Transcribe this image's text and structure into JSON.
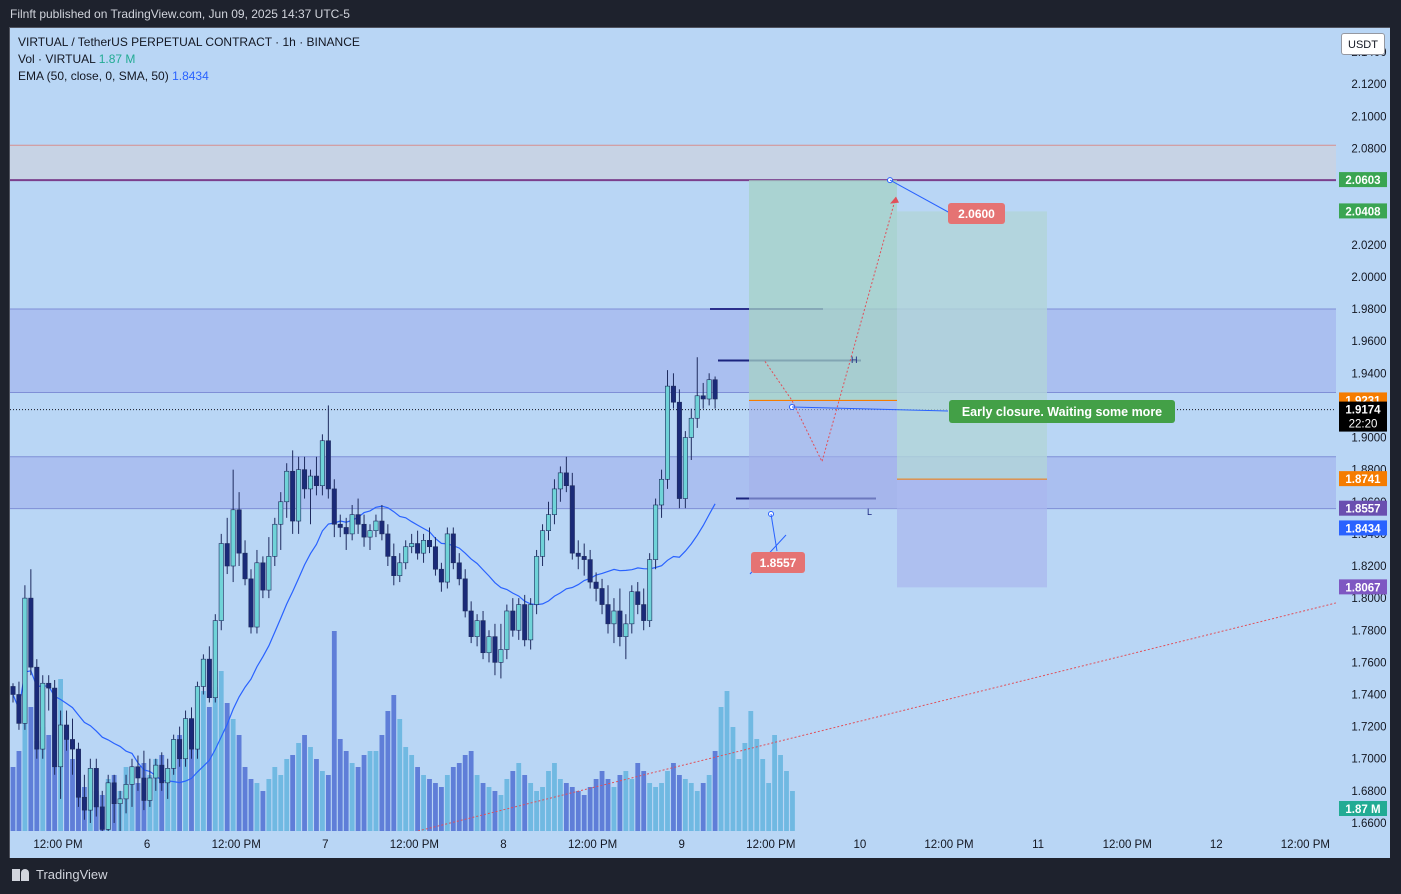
{
  "header": {
    "published": "Filnft published on TradingView.com, Jun 09, 2025 14:37 UTC-5"
  },
  "legend": {
    "symbol": "VIRTUAL / TetherUS PERPETUAL CONTRACT · 1h · BINANCE",
    "vol_label": "Vol · VIRTUAL",
    "vol_value": "1.87 M",
    "ema_label": "EMA (50, close, 0, SMA, 50)",
    "ema_value": "1.8434"
  },
  "currency_button": "USDT",
  "footer": {
    "brand": "TradingView"
  },
  "colors": {
    "background": "#b9d6f5",
    "up_body": "#6fd3d8",
    "down_body": "#1a2a78",
    "wick": "#1e2b5e",
    "ema": "#2962ff",
    "volume": "#5a79d6",
    "resistance_line": "#7b3f8c",
    "path": "#e0505a"
  },
  "chart_data": {
    "type": "candlestick",
    "y_axis": {
      "ylim": [
        1.655,
        2.155
      ],
      "ticks": [
        "2.1400",
        "2.1200",
        "2.1000",
        "2.0800",
        "2.0600",
        "2.0400",
        "2.0200",
        "2.0000",
        "1.9800",
        "1.9600",
        "1.9400",
        "1.9200",
        "1.9000",
        "1.8800",
        "1.8600",
        "1.8400",
        "1.8200",
        "1.8000",
        "1.7800",
        "1.7600",
        "1.7400",
        "1.7200",
        "1.7000",
        "1.6800",
        "1.6600"
      ]
    },
    "x_axis": {
      "ticks": [
        "12:00 PM",
        "6",
        "12:00 PM",
        "7",
        "12:00 PM",
        "8",
        "12:00 PM",
        "9",
        "12:00 PM",
        "10",
        "12:00 PM",
        "11",
        "12:00 PM",
        "12",
        "12:00 PM"
      ]
    },
    "price_labels": [
      {
        "text": "2.0603",
        "price": 2.0603,
        "color": "#3aa552"
      },
      {
        "text": "2.0408",
        "price": 2.0408,
        "color": "#3aa552"
      },
      {
        "text": "1.9231",
        "price": 1.9231,
        "color": "#f57c00"
      },
      {
        "text": "1.9174",
        "price": 1.9174,
        "color": "#000000",
        "sub": "22:20"
      },
      {
        "text": "1.8741",
        "price": 1.8741,
        "color": "#f57c00"
      },
      {
        "text": "1.8557",
        "price": 1.8557,
        "color": "#6a4fb0"
      },
      {
        "text": "1.8434",
        "price": 1.8434,
        "color": "#2962ff"
      },
      {
        "text": "1.8067",
        "price": 1.8067,
        "color": "#7e57c2"
      }
    ],
    "volume_label": "1.87 M",
    "annotations": {
      "target": "2.0600",
      "stop": "1.8557",
      "note": "Early closure. Waiting some more",
      "marker_h": "H",
      "marker_l": "L"
    },
    "zones": [
      {
        "from": 2.0603,
        "to": 2.082,
        "type": "resistance"
      },
      {
        "from": 1.928,
        "to": 1.98,
        "type": "supply"
      },
      {
        "from": 1.8557,
        "to": 1.888,
        "type": "demand"
      }
    ],
    "resistance_price": 2.0603,
    "levels": [
      {
        "price": 1.98
      },
      {
        "price": 1.948
      },
      {
        "price": 1.9231
      },
      {
        "price": 1.862
      },
      {
        "price": 1.8741
      }
    ],
    "trade_setup": {
      "entry": 1.9231,
      "target": 2.0603,
      "target2": 2.0408,
      "stop": 1.8557,
      "stop2": 1.8067,
      "mid": 1.8741
    },
    "projected_path": [
      [
        1.9474,
        1.9231
      ],
      [
        1.885,
        2.05
      ]
    ],
    "candles": [
      [
        1.745,
        1.747,
        1.735,
        1.74
      ],
      [
        1.74,
        1.748,
        1.718,
        1.722
      ],
      [
        1.722,
        1.808,
        1.718,
        1.8
      ],
      [
        1.8,
        1.818,
        1.752,
        1.757
      ],
      [
        1.757,
        1.762,
        1.7,
        1.706
      ],
      [
        1.706,
        1.752,
        1.7,
        1.747
      ],
      [
        1.747,
        1.752,
        1.73,
        1.744
      ],
      [
        1.744,
        1.749,
        1.69,
        1.695
      ],
      [
        1.695,
        1.73,
        1.675,
        1.721
      ],
      [
        1.721,
        1.73,
        1.705,
        1.712
      ],
      [
        1.712,
        1.725,
        1.69,
        1.706
      ],
      [
        1.706,
        1.71,
        1.67,
        1.676
      ],
      [
        1.676,
        1.69,
        1.662,
        1.668
      ],
      [
        1.668,
        1.7,
        1.66,
        1.694
      ],
      [
        1.694,
        1.7,
        1.664,
        1.67
      ],
      [
        1.67,
        1.68,
        1.65,
        1.656
      ],
      [
        1.656,
        1.69,
        1.652,
        1.685
      ],
      [
        1.685,
        1.69,
        1.66,
        1.672
      ],
      [
        1.672,
        1.68,
        1.655,
        1.675
      ],
      [
        1.675,
        1.69,
        1.666,
        1.684
      ],
      [
        1.684,
        1.7,
        1.67,
        1.695
      ],
      [
        1.695,
        1.702,
        1.68,
        1.688
      ],
      [
        1.688,
        1.705,
        1.668,
        1.674
      ],
      [
        1.674,
        1.7,
        1.67,
        1.688
      ],
      [
        1.688,
        1.7,
        1.68,
        1.696
      ],
      [
        1.696,
        1.704,
        1.68,
        1.685
      ],
      [
        1.685,
        1.7,
        1.675,
        1.694
      ],
      [
        1.694,
        1.715,
        1.69,
        1.712
      ],
      [
        1.712,
        1.72,
        1.695,
        1.7
      ],
      [
        1.7,
        1.73,
        1.695,
        1.725
      ],
      [
        1.725,
        1.732,
        1.7,
        1.706
      ],
      [
        1.706,
        1.748,
        1.7,
        1.745
      ],
      [
        1.745,
        1.765,
        1.74,
        1.762
      ],
      [
        1.762,
        1.77,
        1.735,
        1.738
      ],
      [
        1.738,
        1.79,
        1.735,
        1.786
      ],
      [
        1.786,
        1.84,
        1.78,
        1.834
      ],
      [
        1.834,
        1.85,
        1.815,
        1.82
      ],
      [
        1.82,
        1.88,
        1.81,
        1.855
      ],
      [
        1.855,
        1.866,
        1.82,
        1.828
      ],
      [
        1.828,
        1.836,
        1.808,
        1.812
      ],
      [
        1.812,
        1.818,
        1.778,
        1.782
      ],
      [
        1.782,
        1.83,
        1.778,
        1.822
      ],
      [
        1.822,
        1.826,
        1.8,
        1.805
      ],
      [
        1.805,
        1.838,
        1.8,
        1.826
      ],
      [
        1.826,
        1.85,
        1.82,
        1.846
      ],
      [
        1.846,
        1.866,
        1.83,
        1.86
      ],
      [
        1.86,
        1.884,
        1.85,
        1.879
      ],
      [
        1.879,
        1.892,
        1.84,
        1.848
      ],
      [
        1.848,
        1.888,
        1.84,
        1.88
      ],
      [
        1.88,
        1.888,
        1.862,
        1.868
      ],
      [
        1.868,
        1.88,
        1.846,
        1.876
      ],
      [
        1.876,
        1.888,
        1.864,
        1.87
      ],
      [
        1.87,
        1.902,
        1.864,
        1.898
      ],
      [
        1.898,
        1.92,
        1.862,
        1.868
      ],
      [
        1.868,
        1.874,
        1.838,
        1.846
      ],
      [
        1.846,
        1.852,
        1.838,
        1.844
      ],
      [
        1.844,
        1.85,
        1.83,
        1.84
      ],
      [
        1.84,
        1.858,
        1.836,
        1.852
      ],
      [
        1.852,
        1.862,
        1.84,
        1.846
      ],
      [
        1.846,
        1.852,
        1.832,
        1.838
      ],
      [
        1.838,
        1.846,
        1.83,
        1.842
      ],
      [
        1.842,
        1.852,
        1.838,
        1.848
      ],
      [
        1.848,
        1.858,
        1.836,
        1.84
      ],
      [
        1.84,
        1.846,
        1.82,
        1.826
      ],
      [
        1.826,
        1.834,
        1.808,
        1.814
      ],
      [
        1.814,
        1.828,
        1.81,
        1.822
      ],
      [
        1.822,
        1.836,
        1.818,
        1.832
      ],
      [
        1.832,
        1.84,
        1.828,
        1.834
      ],
      [
        1.834,
        1.842,
        1.824,
        1.828
      ],
      [
        1.828,
        1.84,
        1.822,
        1.836
      ],
      [
        1.836,
        1.844,
        1.828,
        1.832
      ],
      [
        1.832,
        1.838,
        1.814,
        1.818
      ],
      [
        1.818,
        1.822,
        1.804,
        1.81
      ],
      [
        1.81,
        1.844,
        1.806,
        1.84
      ],
      [
        1.84,
        1.844,
        1.818,
        1.822
      ],
      [
        1.822,
        1.828,
        1.808,
        1.812
      ],
      [
        1.812,
        1.818,
        1.788,
        1.792
      ],
      [
        1.792,
        1.798,
        1.772,
        1.776
      ],
      [
        1.776,
        1.79,
        1.77,
        1.786
      ],
      [
        1.786,
        1.792,
        1.762,
        1.766
      ],
      [
        1.766,
        1.78,
        1.76,
        1.776
      ],
      [
        1.776,
        1.784,
        1.752,
        1.76
      ],
      [
        1.76,
        1.784,
        1.75,
        1.768
      ],
      [
        1.768,
        1.796,
        1.762,
        1.792
      ],
      [
        1.792,
        1.8,
        1.776,
        1.78
      ],
      [
        1.78,
        1.8,
        1.774,
        1.796
      ],
      [
        1.796,
        1.802,
        1.77,
        1.774
      ],
      [
        1.774,
        1.8,
        1.768,
        1.796
      ],
      [
        1.796,
        1.83,
        1.79,
        1.826
      ],
      [
        1.826,
        1.846,
        1.82,
        1.842
      ],
      [
        1.842,
        1.86,
        1.836,
        1.852
      ],
      [
        1.852,
        1.874,
        1.846,
        1.868
      ],
      [
        1.868,
        1.882,
        1.86,
        1.878
      ],
      [
        1.878,
        1.888,
        1.866,
        1.87
      ],
      [
        1.87,
        1.878,
        1.824,
        1.828
      ],
      [
        1.828,
        1.836,
        1.818,
        1.826
      ],
      [
        1.826,
        1.834,
        1.814,
        1.824
      ],
      [
        1.824,
        1.83,
        1.806,
        1.81
      ],
      [
        1.81,
        1.816,
        1.798,
        1.806
      ],
      [
        1.806,
        1.812,
        1.79,
        1.796
      ],
      [
        1.796,
        1.808,
        1.778,
        1.784
      ],
      [
        1.784,
        1.8,
        1.772,
        1.792
      ],
      [
        1.792,
        1.806,
        1.77,
        1.776
      ],
      [
        1.776,
        1.79,
        1.762,
        1.784
      ],
      [
        1.784,
        1.808,
        1.778,
        1.804
      ],
      [
        1.804,
        1.81,
        1.79,
        1.796
      ],
      [
        1.796,
        1.806,
        1.78,
        1.786
      ],
      [
        1.786,
        1.828,
        1.782,
        1.824
      ],
      [
        1.824,
        1.862,
        1.818,
        1.858
      ],
      [
        1.858,
        1.88,
        1.85,
        1.874
      ],
      [
        1.874,
        1.942,
        1.868,
        1.932
      ],
      [
        1.932,
        1.94,
        1.918,
        1.922
      ],
      [
        1.922,
        1.93,
        1.856,
        1.862
      ],
      [
        1.862,
        1.904,
        1.856,
        1.9
      ],
      [
        1.9,
        1.918,
        1.886,
        1.912
      ],
      [
        1.912,
        1.95,
        1.906,
        1.926
      ],
      [
        1.926,
        1.934,
        1.918,
        1.924
      ],
      [
        1.924,
        1.94,
        1.92,
        1.936
      ],
      [
        1.936,
        1.938,
        1.918,
        1.924
      ]
    ],
    "volume": [
      0.32,
      0.4,
      0.78,
      0.62,
      0.45,
      0.52,
      0.48,
      0.66,
      0.76,
      0.5,
      0.36,
      0.25,
      0.22,
      0.24,
      0.2,
      0.18,
      0.26,
      0.28,
      0.2,
      0.32,
      0.3,
      0.24,
      0.34,
      0.28,
      0.36,
      0.38,
      0.3,
      0.46,
      0.48,
      0.44,
      0.56,
      0.66,
      0.7,
      0.62,
      0.72,
      0.8,
      0.64,
      0.56,
      0.48,
      0.32,
      0.26,
      0.24,
      0.2,
      0.26,
      0.32,
      0.28,
      0.36,
      0.38,
      0.44,
      0.48,
      0.42,
      0.36,
      0.3,
      0.28,
      1.0,
      0.46,
      0.4,
      0.34,
      0.32,
      0.38,
      0.4,
      0.4,
      0.48,
      0.6,
      0.68,
      0.56,
      0.42,
      0.38,
      0.32,
      0.28,
      0.26,
      0.24,
      0.22,
      0.28,
      0.32,
      0.34,
      0.38,
      0.4,
      0.28,
      0.24,
      0.22,
      0.2,
      0.18,
      0.26,
      0.3,
      0.34,
      0.28,
      0.24,
      0.2,
      0.22,
      0.3,
      0.34,
      0.26,
      0.24,
      0.22,
      0.2,
      0.18,
      0.22,
      0.26,
      0.3,
      0.26,
      0.22,
      0.28,
      0.3,
      0.26,
      0.34,
      0.3,
      0.24,
      0.22,
      0.24,
      0.3,
      0.34,
      0.28,
      0.26,
      0.24,
      0.2,
      0.24,
      0.28,
      0.4,
      0.62,
      0.7,
      0.52,
      0.36,
      0.44,
      0.6,
      0.46,
      0.36,
      0.24,
      0.48,
      0.38,
      0.3,
      0.2
    ]
  }
}
